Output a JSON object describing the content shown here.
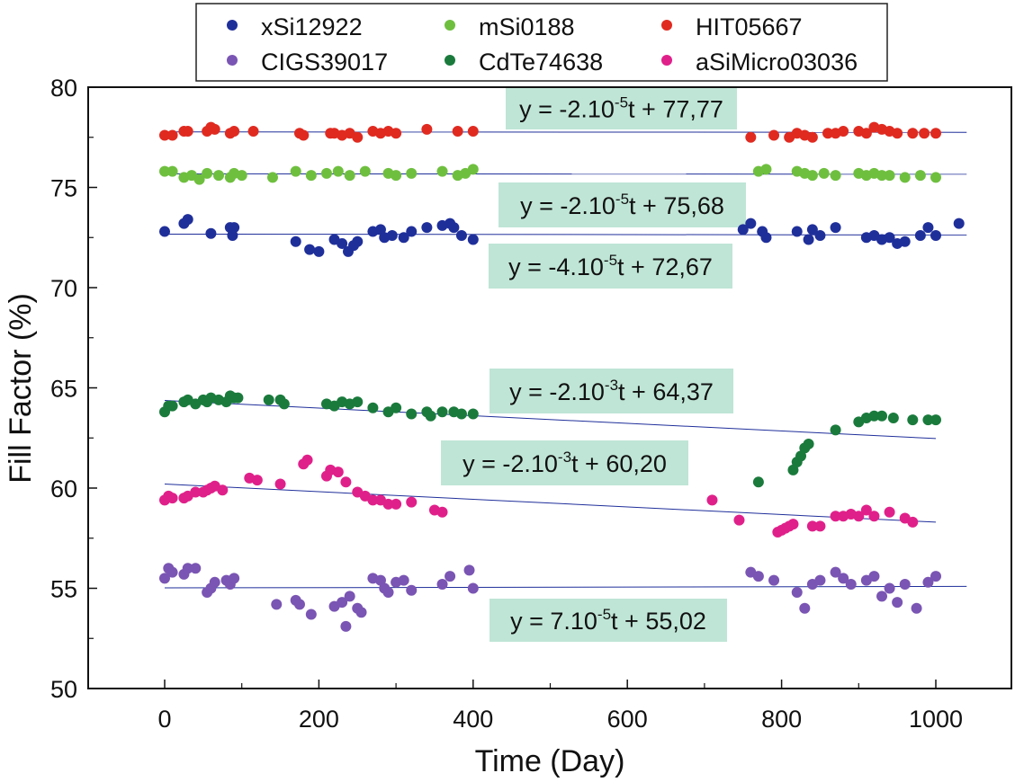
{
  "chart_data": {
    "type": "scatter",
    "xlabel": "Time (Day)",
    "ylabel": "Fill Factor (%)",
    "xlim": [
      -100,
      1100
    ],
    "ylim": [
      50,
      80
    ],
    "xticks": [
      0,
      200,
      400,
      600,
      800,
      1000
    ],
    "yticks": [
      50,
      55,
      60,
      65,
      70,
      75,
      80
    ],
    "xtick_labels": [
      "0",
      "200",
      "400",
      "600",
      "800",
      "1000"
    ],
    "ytick_labels": [
      "50",
      "55",
      "60",
      "65",
      "70",
      "75",
      "80"
    ],
    "legend_position": "top",
    "line_color": "#1f2f9a",
    "series": [
      {
        "name": "xSi12922",
        "color": "#1f2f9a",
        "x": [
          0,
          25,
          30,
          60,
          85,
          88,
          90,
          170,
          188,
          200,
          220,
          230,
          238,
          245,
          250,
          270,
          280,
          285,
          295,
          310,
          320,
          340,
          360,
          370,
          375,
          385,
          400,
          750,
          760,
          775,
          780,
          820,
          835,
          840,
          850,
          870,
          910,
          920,
          930,
          940,
          950,
          960,
          980,
          990,
          1000,
          1030
        ],
        "y": [
          72.8,
          73.2,
          73.4,
          72.7,
          73.0,
          72.6,
          73.0,
          72.3,
          71.9,
          71.8,
          72.4,
          72.2,
          71.8,
          72.1,
          72.3,
          72.8,
          72.9,
          72.5,
          72.6,
          72.5,
          72.8,
          73.0,
          73.1,
          73.2,
          73.0,
          72.6,
          72.4,
          72.9,
          73.2,
          72.8,
          72.5,
          72.8,
          72.4,
          72.9,
          72.6,
          73.0,
          72.5,
          72.6,
          72.4,
          72.5,
          72.2,
          72.3,
          72.6,
          73.0,
          72.6,
          73.2
        ]
      },
      {
        "name": "mSi0188",
        "color": "#6fbf3f",
        "x": [
          0,
          10,
          25,
          35,
          45,
          55,
          70,
          85,
          90,
          100,
          140,
          170,
          190,
          210,
          225,
          240,
          260,
          290,
          300,
          320,
          360,
          380,
          390,
          400,
          770,
          780,
          820,
          830,
          840,
          855,
          870,
          900,
          910,
          920,
          930,
          940,
          960,
          980,
          1000
        ],
        "y": [
          75.8,
          75.8,
          75.5,
          75.6,
          75.4,
          75.7,
          75.6,
          75.5,
          75.7,
          75.6,
          75.5,
          75.8,
          75.6,
          75.7,
          75.8,
          75.6,
          75.8,
          75.7,
          75.6,
          75.7,
          75.8,
          75.6,
          75.7,
          75.9,
          75.8,
          75.9,
          75.8,
          75.7,
          75.6,
          75.7,
          75.6,
          75.7,
          75.6,
          75.7,
          75.6,
          75.6,
          75.5,
          75.6,
          75.5
        ]
      },
      {
        "name": "HIT05667",
        "color": "#e02a20",
        "x": [
          0,
          10,
          25,
          30,
          55,
          60,
          65,
          85,
          90,
          115,
          175,
          180,
          215,
          220,
          230,
          240,
          250,
          270,
          280,
          290,
          300,
          340,
          380,
          400,
          760,
          790,
          810,
          820,
          830,
          840,
          860,
          870,
          880,
          900,
          910,
          920,
          930,
          940,
          950,
          970,
          985,
          1000
        ],
        "y": [
          77.6,
          77.6,
          77.8,
          77.8,
          77.8,
          78.0,
          77.9,
          77.7,
          77.8,
          77.8,
          77.7,
          77.6,
          77.7,
          77.7,
          77.6,
          77.7,
          77.5,
          77.8,
          77.7,
          77.8,
          77.7,
          77.9,
          77.8,
          77.8,
          77.5,
          77.6,
          77.5,
          77.7,
          77.6,
          77.5,
          77.7,
          77.7,
          77.8,
          77.8,
          77.7,
          78.0,
          77.9,
          77.8,
          77.7,
          77.7,
          77.7,
          77.7
        ],
        "fit_label": "y = -2.10-5t + 77,77"
      },
      {
        "name": "CIGS39017",
        "color": "#7a55b3",
        "x": [
          0,
          5,
          10,
          25,
          30,
          40,
          55,
          60,
          65,
          80,
          85,
          90,
          145,
          170,
          175,
          190,
          220,
          230,
          235,
          240,
          250,
          255,
          270,
          280,
          285,
          290,
          300,
          310,
          320,
          360,
          370,
          395,
          400,
          760,
          770,
          790,
          820,
          830,
          840,
          850,
          870,
          880,
          890,
          910,
          920,
          930,
          940,
          950,
          960,
          975,
          990,
          1000
        ],
        "y": [
          55.5,
          56.0,
          55.8,
          55.7,
          56.0,
          56.0,
          54.8,
          55.0,
          55.3,
          55.4,
          55.2,
          55.5,
          54.2,
          54.4,
          54.2,
          53.7,
          54.1,
          54.3,
          53.1,
          54.6,
          54.0,
          53.8,
          55.5,
          55.4,
          55.0,
          54.8,
          55.3,
          55.4,
          54.9,
          55.2,
          55.6,
          55.9,
          55.0,
          55.8,
          55.6,
          55.4,
          54.8,
          54.0,
          55.2,
          55.4,
          55.8,
          55.5,
          55.2,
          55.4,
          55.6,
          54.6,
          55.0,
          54.3,
          55.2,
          54.0,
          55.3,
          55.6
        ],
        "fit_label": "y = 7.10-5t + 55,02"
      },
      {
        "name": "CdTe74638",
        "color": "#1a7a3c",
        "x": [
          0,
          5,
          10,
          25,
          30,
          40,
          50,
          55,
          60,
          70,
          80,
          85,
          90,
          95,
          135,
          150,
          155,
          210,
          220,
          230,
          240,
          250,
          270,
          290,
          300,
          320,
          340,
          345,
          360,
          375,
          385,
          400,
          770,
          815,
          820,
          825,
          830,
          835,
          870,
          900,
          910,
          920,
          930,
          945,
          970,
          990,
          1000
        ],
        "y": [
          63.8,
          64.1,
          64.1,
          64.3,
          64.4,
          64.2,
          64.4,
          64.3,
          64.5,
          64.4,
          64.3,
          64.6,
          64.5,
          64.5,
          64.4,
          64.4,
          64.2,
          64.2,
          64.1,
          64.3,
          64.2,
          64.3,
          64.0,
          63.8,
          64.0,
          63.7,
          63.8,
          63.6,
          63.8,
          63.8,
          63.7,
          63.7,
          60.3,
          60.9,
          61.3,
          61.6,
          62.0,
          62.2,
          62.9,
          63.3,
          63.5,
          63.6,
          63.6,
          63.5,
          63.4,
          63.4,
          63.4
        ]
      },
      {
        "name": "aSiMicro03036",
        "color": "#e0208a",
        "x": [
          0,
          5,
          10,
          25,
          30,
          40,
          50,
          55,
          60,
          65,
          75,
          110,
          120,
          150,
          180,
          185,
          210,
          215,
          225,
          235,
          250,
          260,
          270,
          280,
          290,
          300,
          320,
          350,
          360,
          710,
          745,
          795,
          800,
          805,
          810,
          815,
          840,
          850,
          870,
          880,
          890,
          900,
          910,
          920,
          940,
          960,
          970
        ],
        "y": [
          59.4,
          59.6,
          59.5,
          59.5,
          59.6,
          59.8,
          59.8,
          59.9,
          60.0,
          60.1,
          59.9,
          60.5,
          60.4,
          60.2,
          61.2,
          61.4,
          60.6,
          60.9,
          60.8,
          60.3,
          59.8,
          59.6,
          59.4,
          59.4,
          59.2,
          59.2,
          59.3,
          58.9,
          58.8,
          59.4,
          58.4,
          57.8,
          57.9,
          58.0,
          58.1,
          58.2,
          58.1,
          58.1,
          58.6,
          58.6,
          58.7,
          58.6,
          58.9,
          58.6,
          58.8,
          58.5,
          58.3
        ]
      }
    ],
    "fits": [
      {
        "label_main": "y = -2.10",
        "label_exp": "-5",
        "label_tail": "t + 77,77",
        "slope": -2e-05,
        "intercept": 77.77,
        "x_start": 0,
        "x_end": 1040
      },
      {
        "label_main": "y = -2.10",
        "label_exp": "-5",
        "label_tail": "t + 75,68",
        "slope": -2e-05,
        "intercept": 75.68,
        "x_start": 0,
        "x_end": 1040
      },
      {
        "label_main": "y = -4.10",
        "label_exp": "-5",
        "label_tail": "t + 72,67",
        "slope": -4e-05,
        "intercept": 72.67,
        "x_start": 0,
        "x_end": 1040
      },
      {
        "label_main": "y = -2.10",
        "label_exp": "-3",
        "label_tail": "t + 64,37",
        "slope": -0.0019,
        "intercept": 64.37,
        "x_start": 0,
        "x_end": 1000
      },
      {
        "label_main": "y = -2.10",
        "label_exp": "-3",
        "label_tail": "t + 60,20",
        "slope": -0.0019,
        "intercept": 60.2,
        "x_start": 0,
        "x_end": 1000
      },
      {
        "label_main": "y = 7.10",
        "label_exp": "-5",
        "label_tail": "t + 55,02",
        "slope": 7e-05,
        "intercept": 55.02,
        "x_start": 0,
        "x_end": 1040
      }
    ],
    "fit_box_color": "#bfe5d6"
  }
}
